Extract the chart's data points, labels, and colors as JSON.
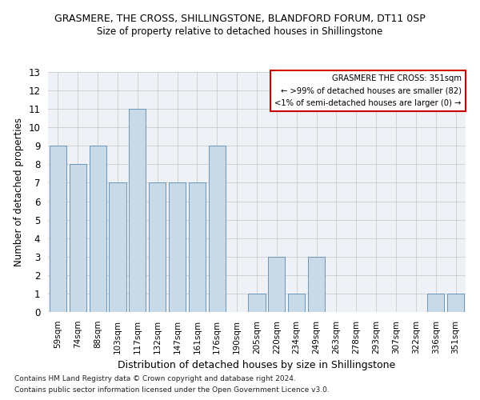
{
  "title1": "GRASMERE, THE CROSS, SHILLINGSTONE, BLANDFORD FORUM, DT11 0SP",
  "title2": "Size of property relative to detached houses in Shillingstone",
  "xlabel": "Distribution of detached houses by size in Shillingstone",
  "ylabel": "Number of detached properties",
  "categories": [
    "59sqm",
    "74sqm",
    "88sqm",
    "103sqm",
    "117sqm",
    "132sqm",
    "147sqm",
    "161sqm",
    "176sqm",
    "190sqm",
    "205sqm",
    "220sqm",
    "234sqm",
    "249sqm",
    "263sqm",
    "278sqm",
    "293sqm",
    "307sqm",
    "322sqm",
    "336sqm",
    "351sqm"
  ],
  "values": [
    9,
    8,
    9,
    7,
    11,
    7,
    7,
    7,
    9,
    0,
    1,
    3,
    1,
    3,
    0,
    0,
    0,
    0,
    0,
    1,
    1
  ],
  "bar_color": "#c8d9e8",
  "bar_edge_color": "#5a8ab0",
  "ylim": [
    0,
    13
  ],
  "yticks": [
    0,
    1,
    2,
    3,
    4,
    5,
    6,
    7,
    8,
    9,
    10,
    11,
    12,
    13
  ],
  "legend_title": "GRASMERE THE CROSS: 351sqm",
  "legend_line1": "← >99% of detached houses are smaller (82)",
  "legend_line2": "<1% of semi-detached houses are larger (0) →",
  "legend_box_color": "#ffffff",
  "legend_box_edge_color": "#cc0000",
  "grid_color": "#cccccc",
  "footnote1": "Contains HM Land Registry data © Crown copyright and database right 2024.",
  "footnote2": "Contains public sector information licensed under the Open Government Licence v3.0.",
  "bg_color": "#eef2f7"
}
